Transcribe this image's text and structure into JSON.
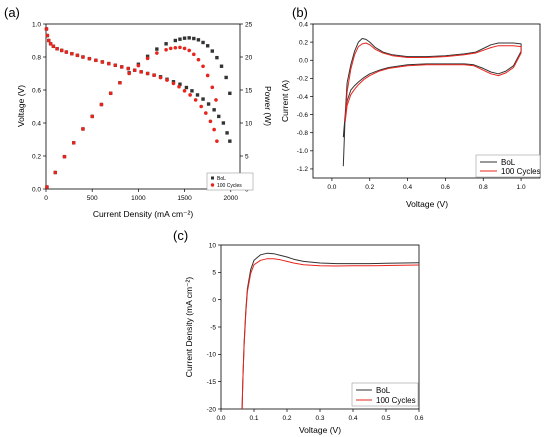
{
  "panel_labels": [
    "(a)",
    "(b)",
    "(c)"
  ],
  "colors": {
    "bol": "#333333",
    "cycles": "#e8241c",
    "axis": "#000000"
  },
  "chart_data": [
    {
      "type": "scatter",
      "panel": "(a)",
      "xlabel": "Current Density (mA cm⁻²)",
      "ylabel": "Voltage (V)",
      "y2label": "Power (W)",
      "xlim": [
        0,
        2100
      ],
      "ylim": [
        0,
        1.0
      ],
      "y2lim": [
        0,
        25
      ],
      "xticks": [
        "0",
        "500",
        "1000",
        "1500",
        "2000"
      ],
      "yticks": [
        "0.0",
        "0.2",
        "0.4",
        "0.6",
        "0.8",
        "1.0"
      ],
      "y2ticks": [
        "0",
        "5",
        "10",
        "15",
        "20",
        "25"
      ],
      "legend": {
        "position": "bottom-right",
        "entries": [
          "BoL",
          "100 Cycles"
        ]
      },
      "series": [
        {
          "name": "BoL",
          "axis": "voltage",
          "x": [
            5,
            15,
            30,
            50,
            80,
            120,
            170,
            220,
            280,
            340,
            400,
            470,
            540,
            610,
            680,
            750,
            820,
            890,
            960,
            1030,
            1100,
            1170,
            1240,
            1310,
            1380,
            1450,
            1520,
            1580,
            1640,
            1700,
            1760,
            1820,
            1870,
            1920,
            1960,
            1990
          ],
          "y": [
            0.97,
            0.93,
            0.9,
            0.88,
            0.865,
            0.85,
            0.84,
            0.83,
            0.82,
            0.81,
            0.8,
            0.79,
            0.78,
            0.77,
            0.76,
            0.75,
            0.74,
            0.73,
            0.72,
            0.71,
            0.7,
            0.69,
            0.68,
            0.665,
            0.65,
            0.635,
            0.615,
            0.595,
            0.57,
            0.545,
            0.515,
            0.48,
            0.44,
            0.4,
            0.34,
            0.29
          ]
        },
        {
          "name": "100 Cycles",
          "axis": "voltage",
          "x": [
            5,
            15,
            30,
            50,
            80,
            120,
            170,
            220,
            280,
            340,
            400,
            470,
            540,
            610,
            680,
            750,
            820,
            890,
            960,
            1030,
            1100,
            1170,
            1240,
            1310,
            1380,
            1440,
            1500,
            1560,
            1620,
            1680,
            1730,
            1780,
            1820,
            1850
          ],
          "y": [
            0.97,
            0.93,
            0.9,
            0.88,
            0.865,
            0.85,
            0.84,
            0.83,
            0.82,
            0.81,
            0.8,
            0.79,
            0.78,
            0.77,
            0.76,
            0.75,
            0.74,
            0.73,
            0.72,
            0.71,
            0.7,
            0.69,
            0.675,
            0.66,
            0.64,
            0.62,
            0.595,
            0.57,
            0.54,
            0.5,
            0.46,
            0.41,
            0.36,
            0.29
          ]
        },
        {
          "name": "BoL",
          "axis": "power",
          "x": [
            10,
            100,
            200,
            300,
            400,
            500,
            600,
            700,
            800,
            900,
            1000,
            1100,
            1200,
            1300,
            1400,
            1450,
            1500,
            1550,
            1600,
            1650,
            1700,
            1750,
            1800,
            1850,
            1900,
            1950,
            1990
          ],
          "y": [
            0.3,
            2.5,
            4.9,
            7.0,
            9.1,
            11.0,
            12.8,
            14.5,
            16.1,
            17.6,
            18.9,
            20.1,
            21.2,
            22.0,
            22.5,
            22.7,
            22.85,
            22.9,
            22.8,
            22.6,
            22.2,
            21.7,
            20.9,
            19.9,
            18.6,
            16.9,
            14.5
          ]
        },
        {
          "name": "100 Cycles",
          "axis": "power",
          "x": [
            10,
            100,
            200,
            300,
            400,
            500,
            600,
            700,
            800,
            900,
            1000,
            1100,
            1200,
            1300,
            1350,
            1400,
            1450,
            1500,
            1550,
            1600,
            1650,
            1700,
            1750,
            1800,
            1840
          ],
          "y": [
            0.3,
            2.5,
            4.9,
            7.0,
            9.1,
            11.0,
            12.8,
            14.5,
            16.1,
            17.5,
            18.7,
            19.8,
            20.6,
            21.1,
            21.3,
            21.4,
            21.45,
            21.3,
            21.0,
            20.4,
            19.6,
            18.6,
            17.2,
            15.4,
            13.5
          ]
        }
      ]
    },
    {
      "type": "line",
      "panel": "(b)",
      "xlabel": "Voltage (V)",
      "ylabel": "Current (A)",
      "xlim": [
        -0.1,
        1.1
      ],
      "ylim": [
        -1.3,
        0.4
      ],
      "xticks": [
        "0.0",
        "0.2",
        "0.4",
        "0.6",
        "0.8",
        "1.0"
      ],
      "yticks": [
        "-1.2",
        "-1.0",
        "-0.8",
        "-0.6",
        "-0.4",
        "-0.2",
        "0.0",
        "0.2",
        "0.4"
      ],
      "legend": {
        "position": "bottom-right",
        "entries": [
          "BoL",
          "100 Cycles"
        ]
      },
      "series": [
        {
          "name": "BoL",
          "x": [
            0.06,
            0.07,
            0.08,
            0.1,
            0.12,
            0.14,
            0.16,
            0.18,
            0.2,
            0.23,
            0.27,
            0.32,
            0.4,
            0.5,
            0.6,
            0.7,
            0.76,
            0.8,
            0.84,
            0.88,
            0.92,
            0.96,
            1.0,
            1.0,
            0.96,
            0.92,
            0.88,
            0.84,
            0.8,
            0.75,
            0.7,
            0.6,
            0.5,
            0.4,
            0.3,
            0.25,
            0.2,
            0.17,
            0.14,
            0.12,
            0.1,
            0.08,
            0.07,
            0.06
          ],
          "y": [
            -1.17,
            -0.6,
            -0.25,
            -0.05,
            0.1,
            0.2,
            0.24,
            0.23,
            0.2,
            0.14,
            0.09,
            0.06,
            0.04,
            0.04,
            0.05,
            0.07,
            0.09,
            0.13,
            0.17,
            0.19,
            0.19,
            0.19,
            0.18,
            0.1,
            -0.06,
            -0.12,
            -0.15,
            -0.13,
            -0.09,
            -0.05,
            -0.04,
            -0.04,
            -0.04,
            -0.05,
            -0.08,
            -0.11,
            -0.15,
            -0.19,
            -0.24,
            -0.28,
            -0.33,
            -0.45,
            -0.6,
            -0.85
          ]
        },
        {
          "name": "100 Cycles",
          "x": [
            0.07,
            0.08,
            0.1,
            0.12,
            0.14,
            0.16,
            0.18,
            0.2,
            0.23,
            0.27,
            0.32,
            0.4,
            0.5,
            0.6,
            0.7,
            0.76,
            0.8,
            0.84,
            0.88,
            0.92,
            0.96,
            1.0,
            1.0,
            0.96,
            0.92,
            0.88,
            0.84,
            0.8,
            0.75,
            0.7,
            0.6,
            0.5,
            0.4,
            0.3,
            0.25,
            0.2,
            0.17,
            0.14,
            0.12,
            0.1,
            0.08,
            0.07
          ],
          "y": [
            -0.68,
            -0.35,
            -0.1,
            0.06,
            0.15,
            0.18,
            0.19,
            0.17,
            0.12,
            0.08,
            0.05,
            0.03,
            0.03,
            0.04,
            0.06,
            0.08,
            0.11,
            0.14,
            0.16,
            0.16,
            0.16,
            0.15,
            0.08,
            -0.08,
            -0.14,
            -0.17,
            -0.15,
            -0.11,
            -0.06,
            -0.05,
            -0.05,
            -0.05,
            -0.06,
            -0.09,
            -0.12,
            -0.17,
            -0.21,
            -0.27,
            -0.32,
            -0.38,
            -0.5,
            -0.68
          ]
        }
      ]
    },
    {
      "type": "line",
      "panel": "(c)",
      "xlabel": "Voltage (V)",
      "ylabel": "Current Density (mA cm⁻²)",
      "xlim": [
        0.0,
        0.6
      ],
      "ylim": [
        -20,
        10
      ],
      "xticks": [
        "0.0",
        "0.1",
        "0.2",
        "0.3",
        "0.4",
        "0.5",
        "0.6"
      ],
      "yticks": [
        "-20",
        "-15",
        "-10",
        "-5",
        "0",
        "5",
        "10"
      ],
      "legend": {
        "position": "bottom-right",
        "entries": [
          "BoL",
          "100 Cycles"
        ]
      },
      "series": [
        {
          "name": "BoL",
          "x": [
            0.064,
            0.066,
            0.07,
            0.075,
            0.08,
            0.09,
            0.1,
            0.12,
            0.14,
            0.16,
            0.18,
            0.2,
            0.22,
            0.25,
            0.3,
            0.35,
            0.4,
            0.45,
            0.5,
            0.55,
            0.6
          ],
          "y": [
            -20,
            -15,
            -8,
            -2,
            2,
            5.5,
            7.2,
            8.2,
            8.5,
            8.4,
            8.1,
            7.8,
            7.4,
            7.0,
            6.7,
            6.6,
            6.6,
            6.6,
            6.65,
            6.7,
            6.75
          ]
        },
        {
          "name": "100 Cycles",
          "x": [
            0.064,
            0.066,
            0.07,
            0.075,
            0.08,
            0.09,
            0.1,
            0.12,
            0.14,
            0.16,
            0.18,
            0.2,
            0.22,
            0.25,
            0.3,
            0.35,
            0.4,
            0.45,
            0.5,
            0.55,
            0.6
          ],
          "y": [
            -20,
            -15,
            -8.5,
            -2.5,
            1.5,
            4.8,
            6.4,
            7.2,
            7.5,
            7.5,
            7.3,
            7.0,
            6.7,
            6.4,
            6.2,
            6.15,
            6.2,
            6.2,
            6.25,
            6.3,
            6.35
          ]
        }
      ]
    }
  ]
}
